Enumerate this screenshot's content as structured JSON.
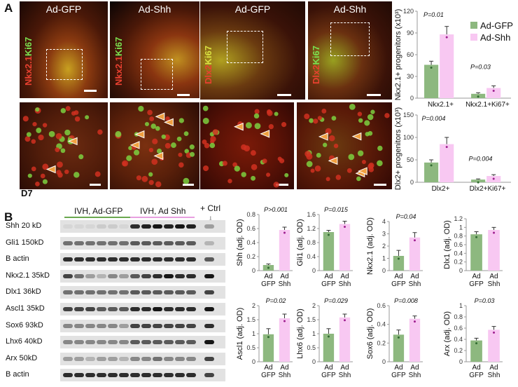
{
  "panel_a": {
    "label": "A",
    "timepoint": "D7",
    "images": [
      {
        "title": "Ad-GFP",
        "marker_red": "Nkx2.1",
        "marker_green": "Ki67"
      },
      {
        "title": "Ad-Shh",
        "marker_red": "Nkx2.1",
        "marker_green": "Ki67"
      },
      {
        "title": "Ad-GFP",
        "marker_red": "Dlx2",
        "marker_green": "Ki67"
      },
      {
        "title": "Ad-Shh",
        "marker_red": "Dlx2",
        "marker_green": "Ki67"
      }
    ]
  },
  "panel_b": {
    "label": "B",
    "groups": [
      "IVH, Ad-GFP",
      "IVH, Ad Shh",
      "+ Ctrl"
    ],
    "blot_rows": [
      "Shh 20 kD",
      "Gli1 150kD",
      "B actin",
      "Nkx2.1 35kD",
      "Dlx1 36kD",
      "Ascl1 35kD",
      "Sox6 93kD",
      "Lhx6 40kD",
      "Arx 50kD",
      "B actin"
    ]
  },
  "colors": {
    "gfp": "#8db87f",
    "shh": "#f8c8f2",
    "gfp_dot": "#2f6a2f",
    "shh_dot": "#a02090"
  },
  "legend": [
    "Ad-GFP",
    "Ad-Shh"
  ],
  "chart_data": [
    {
      "type": "bar",
      "ylabel": "Nkx2.1+ progenitors (x10³)",
      "categories": [
        "Nkx2.1+",
        "Nkx2.1+Ki67+"
      ],
      "series": [
        {
          "name": "Ad-GFP",
          "values": [
            46,
            6
          ],
          "errors": [
            5,
            1.5
          ]
        },
        {
          "name": "Ad-Shh",
          "values": [
            88,
            14
          ],
          "errors": [
            11,
            3
          ]
        }
      ],
      "ylim": [
        0,
        120
      ],
      "yticks": [
        0,
        30,
        60,
        90,
        120
      ],
      "pvalues": [
        "P=0.01",
        "P=0.03"
      ]
    },
    {
      "type": "bar",
      "ylabel": "Dlx2+ progenitors (x10³)",
      "categories": [
        "Dlx2+",
        "Dlx2+Ki67+"
      ],
      "series": [
        {
          "name": "Ad-GFP",
          "values": [
            44,
            6
          ],
          "errors": [
            6,
            1.5
          ]
        },
        {
          "name": "Ad-Shh",
          "values": [
            85,
            14
          ],
          "errors": [
            15,
            3
          ]
        }
      ],
      "ylim": [
        0,
        150
      ],
      "yticks": [
        0,
        50,
        100,
        150
      ],
      "pvalues": [
        "P=0.004",
        "P=0.004"
      ]
    },
    {
      "type": "bar",
      "ylabel": "Shh (adj. OD)",
      "categories": [
        "Ad GFP",
        "Ad Shh"
      ],
      "values": [
        0.08,
        0.58
      ],
      "errors": [
        0.015,
        0.04
      ],
      "ylim": [
        0,
        0.8
      ],
      "yticks": [
        0,
        0.2,
        0.4,
        0.6,
        0.8
      ],
      "pvalue": "P>0.001"
    },
    {
      "type": "bar",
      "ylabel": "Gli1 (adj. OD)",
      "categories": [
        "Ad GFP",
        "Ad Shh"
      ],
      "values": [
        1.1,
        1.33
      ],
      "errors": [
        0.05,
        0.08
      ],
      "ylim": [
        0,
        1.6
      ],
      "yticks": [
        0,
        0.4,
        0.8,
        1.2,
        1.6
      ],
      "pvalue": "P=0.015"
    },
    {
      "type": "bar",
      "ylabel": "Nkx2.1 (adj. OD)",
      "categories": [
        "Ad GFP",
        "Ad Shh"
      ],
      "values": [
        1.2,
        2.7
      ],
      "errors": [
        0.45,
        0.4
      ],
      "ylim": [
        0,
        4
      ],
      "yticks": [
        0,
        1,
        2,
        3,
        4
      ],
      "pvalue": "P=0.04"
    },
    {
      "type": "bar",
      "ylabel": "Dlx1 (adj. OD)",
      "categories": [
        "Ad GFP",
        "Ad Shh"
      ],
      "values": [
        0.84,
        0.94
      ],
      "errors": [
        0.06,
        0.06
      ],
      "ylim": [
        0,
        1.2
      ],
      "yticks": [
        0,
        0.2,
        0.4,
        0.6,
        0.8,
        1,
        1.2
      ],
      "pvalue": ""
    },
    {
      "type": "bar",
      "ylabel": "Ascl1 (adj. OD)",
      "categories": [
        "Ad GFP",
        "Ad Shh"
      ],
      "values": [
        0.98,
        1.55
      ],
      "errors": [
        0.2,
        0.15
      ],
      "ylim": [
        0,
        2
      ],
      "yticks": [
        0,
        0.5,
        1,
        1.5,
        2
      ],
      "pvalue": "P=0.02"
    },
    {
      "type": "bar",
      "ylabel": "Lhx6 (adj. OD)",
      "categories": [
        "Ad GFP",
        "Ad Shh"
      ],
      "values": [
        1.0,
        1.58
      ],
      "errors": [
        0.18,
        0.12
      ],
      "ylim": [
        0,
        2
      ],
      "yticks": [
        0,
        0.5,
        1,
        1.5,
        2
      ],
      "pvalue": "P=0.029"
    },
    {
      "type": "bar",
      "ylabel": "Sox6 (adj. OD)",
      "categories": [
        "Ad GFP",
        "Ad Shh"
      ],
      "values": [
        0.29,
        0.46
      ],
      "errors": [
        0.05,
        0.03
      ],
      "ylim": [
        0,
        0.6
      ],
      "yticks": [
        0,
        0.2,
        0.4,
        0.6
      ],
      "pvalue": "P=0.008"
    },
    {
      "type": "bar",
      "ylabel": "Arx (adj. OD)",
      "categories": [
        "Ad GFP",
        "Ad Shh"
      ],
      "values": [
        0.38,
        0.57
      ],
      "errors": [
        0.04,
        0.06
      ],
      "ylim": [
        0,
        1
      ],
      "yticks": [
        0,
        0.2,
        0.4,
        0.6,
        0.8,
        1
      ],
      "pvalue": "P=0.03"
    }
  ]
}
